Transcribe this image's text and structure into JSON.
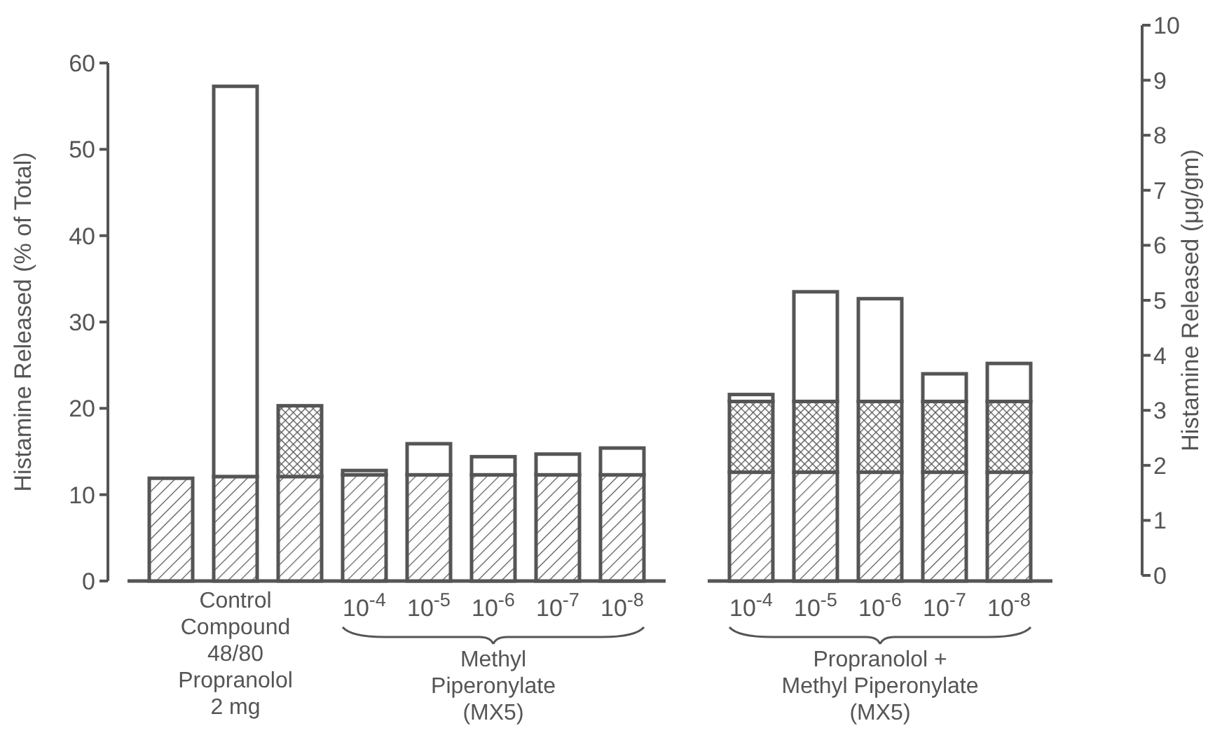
{
  "chart_data": {
    "type": "bar",
    "stacked": true,
    "categories": [
      null,
      null,
      null,
      "10$^{-4}$",
      "10$^{-5}$",
      "10$^{-6}$",
      "10$^{-7}$",
      "10$^{-8}$",
      null,
      "10$^{-4}$",
      "10$^{-5}$",
      "10$^{-6}$",
      "10$^{-7}$",
      "10$^{-8}$"
    ],
    "series": [
      {
        "color": "#555555",
        "values": [
          11.9,
          12.1,
          12.1,
          12.3,
          12.3,
          12.3,
          12.3,
          12.3,
          null,
          12.6,
          12.6,
          12.6,
          12.6,
          12.6
        ]
      },
      {
        "color": "#555555",
        "values": [
          null,
          null,
          8.2,
          null,
          null,
          null,
          null,
          null,
          null,
          8.2,
          8.2,
          8.2,
          8.2,
          8.2
        ]
      },
      {
        "color": "#ffffff",
        "values": [
          null,
          45.2,
          null,
          0.5,
          3.6,
          2.1,
          2.4,
          3.1,
          null,
          0.8,
          12.7,
          11.9,
          3.2,
          4.4
        ]
      }
    ],
    "ylabel": "Histamine Released (% of Total)",
    "y2label": "Histamine Released  (μg/gm)",
    "ylim": [
      0,
      60
    ],
    "yticks": [
      0,
      10,
      20,
      30,
      40,
      50,
      60
    ],
    "y2lim": [
      0,
      10
    ],
    "y2ticks": [
      0,
      1,
      2,
      3,
      4,
      5,
      6,
      7,
      8,
      9,
      10
    ],
    "annotations": [
      "Control\nCompound\n48/80\nPropranolol\n2 mg",
      "Methyl\nPiperonylate\n(MX5)",
      "Propranolol +\nMethyl Piperonylate\n(MX5)"
    ]
  }
}
